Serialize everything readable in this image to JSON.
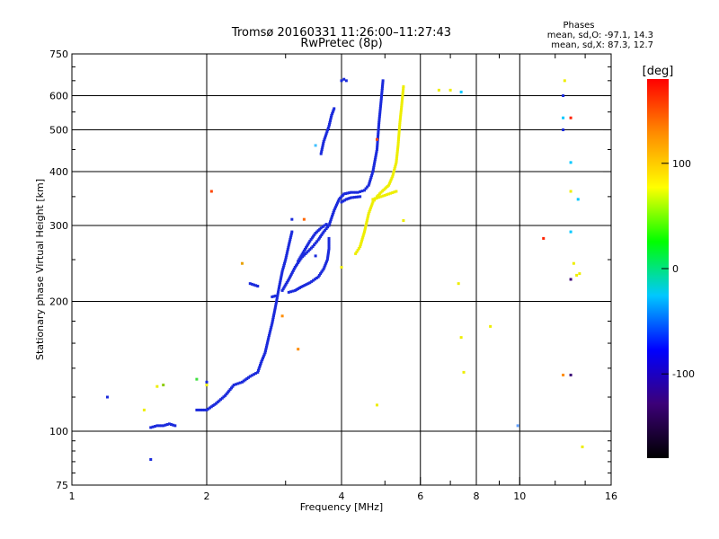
{
  "chart_data": {
    "type": "scatter",
    "title": "Tromsø 20160331 11:26:00–11:27:43",
    "subtitle": "RwPretec (8p)",
    "xlabel": "Frequency [MHz]",
    "ylabel": "Stationary phase Virtual Height [km]",
    "xscale": "log",
    "yscale": "log",
    "xlim": [
      1,
      16
    ],
    "ylim": [
      75,
      750
    ],
    "x_ticks": [
      1,
      2,
      4,
      6,
      8,
      10,
      16
    ],
    "y_ticks": [
      75,
      100,
      200,
      300,
      400,
      500,
      600,
      750
    ],
    "x_gridlines": [
      2,
      4,
      6,
      8,
      10
    ],
    "y_gridlines": [
      100,
      200,
      300,
      400,
      500,
      600
    ],
    "phases_info": {
      "heading": "Phases",
      "line_o": "mean, sd,O: -97.1, 14.3",
      "line_x": "mean, sd,X:  87.3, 12.7"
    },
    "colorbar": {
      "label": "[deg]",
      "range": [
        -180,
        180
      ],
      "ticks": [
        100,
        0,
        -100
      ],
      "colors": [
        "#000000",
        "#3c0078",
        "#0000ff",
        "#00c8ff",
        "#00ff00",
        "#ffff00",
        "#ff8c00",
        "#ff0000"
      ]
    },
    "series": [
      {
        "name": "O-mode trace (~-100 deg)",
        "color": "#1a2adc",
        "segments": [
          [
            [
              1.5,
              102
            ],
            [
              1.55,
              103
            ],
            [
              1.6,
              103
            ],
            [
              1.65,
              104
            ],
            [
              1.7,
              103
            ]
          ],
          [
            [
              1.9,
              112
            ],
            [
              2.0,
              112
            ],
            [
              2.1,
              116
            ],
            [
              2.2,
              121
            ],
            [
              2.3,
              128
            ],
            [
              2.4,
              130
            ],
            [
              2.5,
              134
            ],
            [
              2.6,
              137
            ],
            [
              2.65,
              145
            ],
            [
              2.7,
              152
            ],
            [
              2.75,
              165
            ],
            [
              2.8,
              178
            ],
            [
              2.85,
              195
            ],
            [
              2.9,
              215
            ],
            [
              2.95,
              235
            ],
            [
              3.0,
              250
            ],
            [
              3.05,
              270
            ],
            [
              3.1,
              290
            ]
          ],
          [
            [
              2.95,
              212
            ],
            [
              3.05,
              225
            ],
            [
              3.15,
              240
            ],
            [
              3.25,
              252
            ],
            [
              3.35,
              260
            ],
            [
              3.45,
              268
            ],
            [
              3.55,
              278
            ],
            [
              3.65,
              290
            ],
            [
              3.75,
              300
            ]
          ],
          [
            [
              3.05,
              210
            ],
            [
              3.15,
              212
            ],
            [
              3.25,
              216
            ],
            [
              3.4,
              221
            ],
            [
              3.55,
              228
            ],
            [
              3.65,
              238
            ],
            [
              3.72,
              250
            ],
            [
              3.75,
              265
            ],
            [
              3.75,
              280
            ]
          ],
          [
            [
              3.2,
              248
            ],
            [
              3.3,
              262
            ],
            [
              3.4,
              276
            ],
            [
              3.5,
              288
            ],
            [
              3.6,
              296
            ],
            [
              3.7,
              302
            ]
          ],
          [
            [
              3.75,
              300
            ],
            [
              3.85,
              325
            ],
            [
              3.95,
              345
            ],
            [
              4.05,
              355
            ],
            [
              4.2,
              358
            ],
            [
              4.35,
              358
            ],
            [
              4.5,
              362
            ],
            [
              4.6,
              372
            ],
            [
              4.7,
              400
            ],
            [
              4.8,
              450
            ],
            [
              4.85,
              520
            ],
            [
              4.9,
              580
            ],
            [
              4.95,
              650
            ]
          ],
          [
            [
              4.0,
              340
            ],
            [
              4.1,
              345
            ],
            [
              4.2,
              348
            ],
            [
              4.4,
              350
            ]
          ],
          [
            [
              3.6,
              440
            ],
            [
              3.65,
              470
            ],
            [
              3.75,
              510
            ],
            [
              3.8,
              540
            ],
            [
              3.85,
              560
            ]
          ],
          [
            [
              4.0,
              650
            ],
            [
              4.05,
              655
            ],
            [
              4.1,
              650
            ]
          ],
          [
            [
              2.5,
              220
            ],
            [
              2.6,
              217
            ]
          ],
          [
            [
              2.8,
              205
            ],
            [
              2.85,
              206
            ]
          ]
        ],
        "points": [
          [
            1.2,
            120
          ],
          [
            1.5,
            86
          ],
          [
            2.0,
            130
          ],
          [
            3.1,
            310
          ],
          [
            3.5,
            255
          ],
          [
            12.5,
            600
          ],
          [
            12.5,
            500
          ]
        ]
      },
      {
        "name": "X-mode trace (~+100 deg)",
        "color": "#eeee00",
        "segments": [
          [
            [
              4.3,
              258
            ],
            [
              4.4,
              268
            ],
            [
              4.5,
              290
            ],
            [
              4.6,
              320
            ],
            [
              4.7,
              340
            ],
            [
              4.8,
              350
            ],
            [
              4.9,
              358
            ],
            [
              5.0,
              365
            ],
            [
              5.1,
              372
            ],
            [
              5.2,
              390
            ],
            [
              5.3,
              420
            ],
            [
              5.35,
              460
            ],
            [
              5.4,
              520
            ],
            [
              5.45,
              570
            ],
            [
              5.5,
              630
            ]
          ],
          [
            [
              4.7,
              345
            ],
            [
              4.9,
              350
            ],
            [
              5.1,
              355
            ],
            [
              5.3,
              360
            ]
          ]
        ],
        "points": [
          [
            1.45,
            112
          ],
          [
            1.55,
            127
          ],
          [
            4.0,
            240
          ],
          [
            4.8,
            115
          ],
          [
            5.5,
            308
          ],
          [
            6.6,
            618
          ],
          [
            7.0,
            618
          ],
          [
            7.3,
            220
          ],
          [
            7.4,
            165
          ],
          [
            7.5,
            137
          ],
          [
            8.6,
            175
          ],
          [
            12.6,
            650
          ],
          [
            13.0,
            360
          ],
          [
            13.2,
            245
          ],
          [
            13.4,
            230
          ],
          [
            13.6,
            232
          ],
          [
            13.8,
            92
          ],
          [
            2.0,
            128
          ]
        ]
      },
      {
        "name": "Scattered phases (other colours)",
        "color": "#888888",
        "points": [
          [
            2.05,
            360,
            "#ff4400"
          ],
          [
            2.4,
            245,
            "#e8a000"
          ],
          [
            1.6,
            128,
            "#8ccc00"
          ],
          [
            1.9,
            132,
            "#40e040"
          ],
          [
            3.2,
            155,
            "#ff8c00"
          ],
          [
            2.95,
            185,
            "#ff8c00"
          ],
          [
            3.3,
            310,
            "#ff6600"
          ],
          [
            3.5,
            460,
            "#40c0ff"
          ],
          [
            4.8,
            475,
            "#ff4400"
          ],
          [
            7.4,
            612,
            "#00c8ff"
          ],
          [
            9.9,
            103,
            "#60a0ff"
          ],
          [
            11.3,
            280,
            "#ff2200"
          ],
          [
            12.5,
            533,
            "#00c8ff"
          ],
          [
            12.5,
            135,
            "#ff8c00"
          ],
          [
            13.0,
            533,
            "#ff2200"
          ],
          [
            13.0,
            420,
            "#00c8ff"
          ],
          [
            13.0,
            290,
            "#00c8ff"
          ],
          [
            13.0,
            225,
            "#3c0078"
          ],
          [
            13.0,
            135,
            "#3c0078"
          ],
          [
            13.5,
            345,
            "#00c8ff"
          ]
        ]
      }
    ]
  }
}
